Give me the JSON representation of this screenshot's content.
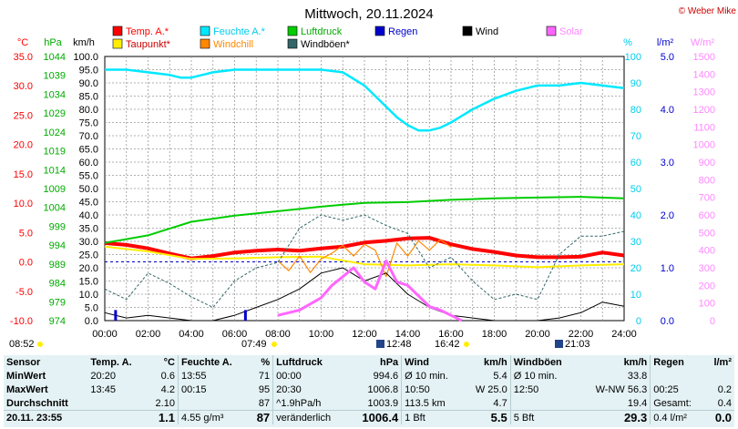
{
  "title": "Mittwoch, 20.11.2024",
  "copyright": "© Weber Mike",
  "legend": [
    {
      "label": "Temp. A.*",
      "color": "#ff0000"
    },
    {
      "label": "Feuchte A.*",
      "color": "#00e8ff"
    },
    {
      "label": "Luftdruck",
      "color": "#00cc00"
    },
    {
      "label": "Regen",
      "color": "#0000cc"
    },
    {
      "label": "Wind",
      "color": "#000000"
    },
    {
      "label": "Solar",
      "color": "#ff66ff"
    },
    {
      "label": "Taupunkt*",
      "color": "#ffee00"
    },
    {
      "label": "Windchill",
      "color": "#ff8800"
    },
    {
      "label": "Windböen*",
      "color": "#336666"
    }
  ],
  "axis_units": {
    "temp": "°C",
    "pressure": "hPa",
    "wind": "km/h",
    "humidity": "%",
    "rain": "l/m²",
    "solar": "W/m²"
  },
  "event_times": {
    "sunrise": "07:49",
    "sunset": "16:42",
    "moonrise": "12:48",
    "moonset": "21:03",
    "dawn": "08:52"
  },
  "chart_data": {
    "type": "line",
    "x_range": [
      "00:00",
      "24:00"
    ],
    "x_ticks": [
      "00:00",
      "02:00",
      "04:00",
      "06:00",
      "08:00",
      "10:00",
      "12:00",
      "14:00",
      "16:00",
      "18:00",
      "20:00",
      "22:00",
      "24:00"
    ],
    "axes": {
      "temp_c": {
        "range": [
          -10.0,
          35.0
        ],
        "ticks": [
          "35.0",
          "30.0",
          "25.0",
          "20.0",
          "15.0",
          "10.0",
          "5.0",
          "0.0",
          "-5.0",
          "-10.0"
        ]
      },
      "pressure_hpa": {
        "range": [
          974,
          1044
        ],
        "ticks": [
          "1044",
          "1039",
          "1034",
          "1029",
          "1024",
          "1019",
          "1014",
          "1009",
          "1004",
          "999",
          "994",
          "989",
          "984",
          "979",
          "974"
        ]
      },
      "wind_kmh": {
        "range": [
          0,
          100
        ],
        "ticks": [
          "100.0",
          "95.0",
          "90.0",
          "85.0",
          "80.0",
          "75.0",
          "70.0",
          "65.0",
          "60.0",
          "55.0",
          "50.0",
          "45.0",
          "40.0",
          "35.0",
          "30.0",
          "25.0",
          "20.0",
          "15.0",
          "10.0",
          "5.0",
          "0.0"
        ]
      },
      "humidity_pct": {
        "range": [
          0,
          100
        ],
        "ticks": [
          "100",
          "90",
          "80",
          "70",
          "60",
          "50",
          "40",
          "30",
          "20",
          "10",
          "0"
        ]
      },
      "rain_lm2": {
        "range": [
          0,
          5
        ],
        "ticks": [
          "5.0",
          "4.0",
          "3.0",
          "2.0",
          "1.0",
          "0.0"
        ]
      },
      "solar_wm2": {
        "range": [
          0,
          1500
        ],
        "ticks": [
          "1500",
          "1400",
          "1300",
          "1200",
          "1100",
          "1000",
          "900",
          "800",
          "700",
          "600",
          "500",
          "400",
          "300",
          "200",
          "100",
          "0"
        ]
      }
    },
    "series": [
      {
        "name": "Temp. A.*",
        "axis": "temp_c",
        "color": "#ff0000",
        "x": [
          0,
          1,
          2,
          3,
          4,
          5,
          6,
          7,
          8,
          9,
          10,
          11,
          12,
          13,
          14,
          15,
          16,
          17,
          18,
          19,
          20,
          21,
          22,
          23,
          24
        ],
        "values": [
          3.2,
          2.9,
          2.3,
          1.4,
          0.6,
          1.0,
          1.6,
          1.9,
          2.1,
          1.9,
          2.3,
          2.6,
          3.3,
          3.6,
          4.0,
          4.1,
          3.0,
          2.2,
          1.7,
          1.1,
          0.8,
          0.8,
          0.9,
          1.6,
          1.1
        ]
      },
      {
        "name": "Taupunkt*",
        "axis": "temp_c",
        "color": "#ffee00",
        "x": [
          0,
          2,
          4,
          6,
          8,
          10,
          12,
          14,
          16,
          18,
          20,
          22,
          24
        ],
        "values": [
          2.6,
          1.8,
          0.5,
          0.6,
          0.8,
          0.9,
          -0.4,
          -0.6,
          -0.4,
          -0.6,
          -0.9,
          -0.6,
          -0.4
        ]
      },
      {
        "name": "Windchill",
        "axis": "temp_c",
        "color": "#ff8800",
        "x": [
          8,
          8.5,
          9,
          9.5,
          10,
          10.5,
          11,
          11.5,
          12,
          12.5,
          13,
          13.5,
          14,
          14.5,
          15,
          15.5,
          16
        ],
        "values": [
          0.2,
          -1.5,
          1.0,
          -1.8,
          0.5,
          1.5,
          2.8,
          1.0,
          3.0,
          2.0,
          -2.5,
          3.2,
          1.0,
          3.6,
          2.0,
          3.8,
          2.5
        ]
      },
      {
        "name": "Feuchte A.*",
        "axis": "humidity_pct",
        "color": "#00e8ff",
        "x": [
          0,
          1,
          2,
          3,
          3.5,
          4,
          4.5,
          5,
          6,
          7,
          8,
          9,
          10,
          11,
          12,
          13,
          13.5,
          14,
          14.5,
          15,
          15.5,
          16,
          17,
          18,
          19,
          20,
          21,
          22,
          23,
          24
        ],
        "values": [
          95,
          95,
          94,
          93,
          92,
          92,
          93,
          94,
          95,
          95,
          95,
          95,
          95,
          94,
          89,
          81,
          77,
          74,
          72,
          72,
          73,
          75,
          80,
          84,
          87,
          89,
          89,
          90,
          89,
          88
        ]
      },
      {
        "name": "Luftdruck",
        "axis": "pressure_hpa",
        "color": "#00cc00",
        "x": [
          0,
          2,
          4,
          6,
          8,
          10,
          12,
          14,
          16,
          18,
          20,
          22,
          24
        ],
        "values": [
          994.6,
          996.6,
          1000.2,
          1001.8,
          1003.0,
          1004.2,
          1005.2,
          1005.4,
          1006.0,
          1006.4,
          1006.6,
          1006.8,
          1006.4
        ]
      },
      {
        "name": "Windböen*",
        "axis": "wind_kmh",
        "color": "#336666",
        "x": [
          0,
          1,
          2,
          3,
          4,
          5,
          6,
          7,
          8,
          9,
          10,
          11,
          12,
          13,
          14,
          15,
          16,
          17,
          18,
          19,
          20,
          21,
          22,
          23,
          24
        ],
        "values": [
          12,
          8,
          18,
          14,
          9,
          5,
          15,
          20,
          22,
          35,
          40,
          38,
          40,
          36,
          33,
          20,
          24,
          15,
          8,
          10,
          8,
          25,
          32,
          32,
          33.8
        ]
      },
      {
        "name": "Wind",
        "axis": "wind_kmh",
        "color": "#000000",
        "x": [
          0,
          1,
          2,
          3,
          4,
          5,
          6,
          7,
          8,
          9,
          10,
          11,
          12,
          13,
          14,
          15,
          16,
          17,
          18,
          19,
          20,
          21,
          22,
          23,
          24
        ],
        "values": [
          3,
          1,
          2,
          1,
          0,
          0,
          2,
          5,
          8,
          12,
          18,
          20,
          15,
          18,
          10,
          5,
          2,
          1,
          0,
          0,
          0,
          1,
          3,
          7,
          5.4
        ]
      },
      {
        "name": "Solar",
        "axis": "solar_wm2",
        "color": "#ff66ff",
        "x": [
          8,
          9,
          10,
          10.5,
          11,
          11.5,
          12,
          12.5,
          13,
          13.5,
          14,
          14.5,
          15,
          15.5,
          16,
          16.5
        ],
        "values": [
          30,
          60,
          130,
          200,
          250,
          300,
          220,
          180,
          340,
          220,
          200,
          140,
          80,
          60,
          30,
          0
        ]
      },
      {
        "name": "Regen",
        "axis": "rain_lm2",
        "color": "#0000cc",
        "x": [
          0.5,
          6.5
        ],
        "values": [
          0.2,
          0.2
        ]
      }
    ]
  },
  "stats": {
    "headers": {
      "sensor": "Sensor",
      "temp": "Temp. A.",
      "temp_unit": "°C",
      "hum": "Feuchte A.",
      "hum_unit": "%",
      "press": "Luftdruck",
      "press_unit": "hPa",
      "wind": "Wind",
      "wind_unit": "km/h",
      "gust": "Windböen",
      "gust_unit": "km/h",
      "rain": "Regen",
      "rain_unit": "l/m²"
    },
    "rows": [
      {
        "label": "MinWert",
        "cells": [
          "20:20",
          "0.6",
          "13:55",
          "71",
          "00:00",
          "994.6",
          "Ø 10 min.",
          "5.4",
          "Ø 10 min.",
          "33.8",
          "",
          ""
        ]
      },
      {
        "label": "MaxWert",
        "cells": [
          "13:45",
          "4.2",
          "00:15",
          "95",
          "20:30",
          "1006.8",
          "10:50",
          "W 25.0",
          "12:50",
          "W-NW 56.3",
          "00:25",
          "0.2"
        ]
      },
      {
        "label": "Durchschnitt",
        "cells": [
          "",
          "2.10",
          "",
          "87",
          "^1.9hPa/h",
          "1003.9",
          "113.5 km",
          "4.7",
          "",
          "19.4",
          "Gesamt:",
          "0.4"
        ]
      },
      {
        "label": "20.11. 23:55",
        "cells": [
          "",
          "1.1",
          "4.55 g/m³",
          "87",
          "veränderlich",
          "1006.4",
          "1 Bft",
          "5.5",
          "5 Bft",
          "29.3",
          "0.4 l/m²",
          "0.0"
        ]
      }
    ]
  }
}
